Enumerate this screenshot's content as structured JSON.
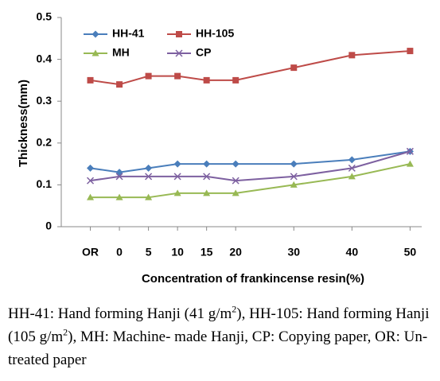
{
  "chart_data": {
    "type": "line",
    "x_label": "Concentration of frankincense resin(%)",
    "y_label": "Thickness(mm)",
    "xlim": [
      -10,
      52
    ],
    "xticks": [
      {
        "value": -5,
        "label": "OR"
      },
      0,
      5,
      10,
      15,
      20,
      30,
      40,
      50
    ],
    "ylim": [
      0,
      0.5
    ],
    "yticks": [
      0,
      0.1,
      0.2,
      0.3,
      0.4,
      0.5
    ],
    "grid": false,
    "legend": "upper left",
    "series": [
      {
        "name": "HH-41",
        "color": "#4a7ebb",
        "marker": "diamond",
        "x": [
          -5,
          0,
          5,
          10,
          15,
          20,
          30,
          40,
          50
        ],
        "values": [
          0.14,
          0.13,
          0.14,
          0.15,
          0.15,
          0.15,
          0.15,
          0.16,
          0.18
        ]
      },
      {
        "name": "HH-105",
        "color": "#be4b48",
        "marker": "square",
        "x": [
          -5,
          0,
          5,
          10,
          15,
          20,
          30,
          40,
          50
        ],
        "values": [
          0.35,
          0.34,
          0.36,
          0.36,
          0.35,
          0.35,
          0.38,
          0.41,
          0.42
        ]
      },
      {
        "name": "MH",
        "color": "#98b954",
        "marker": "triangle",
        "x": [
          -5,
          0,
          5,
          10,
          15,
          20,
          30,
          40,
          50
        ],
        "values": [
          0.07,
          0.07,
          0.07,
          0.08,
          0.08,
          0.08,
          0.1,
          0.12,
          0.15
        ]
      },
      {
        "name": "CP",
        "color": "#7d60a0",
        "marker": "x",
        "x": [
          -5,
          0,
          5,
          10,
          15,
          20,
          30,
          40,
          50
        ],
        "values": [
          0.11,
          0.12,
          0.12,
          0.12,
          0.12,
          0.11,
          0.12,
          0.14,
          0.18
        ]
      }
    ]
  },
  "caption": [
    "HH-41: Hand forming Hanji (41 g/m",
    "2",
    "), HH-105: Hand forming Hanji (105 g/m",
    "2",
    "), MH: Machine- made Hanji, CP: Copying paper, OR: Un-treated paper"
  ]
}
